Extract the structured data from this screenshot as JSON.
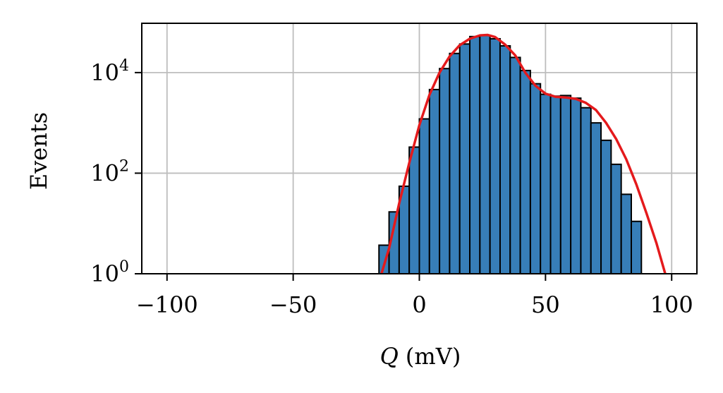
{
  "chart_data": {
    "type": "bar",
    "title": "",
    "xlabel": "(mV)",
    "xlabel_symbol": "Q",
    "ylabel": "Events",
    "xlim": [
      -110,
      110
    ],
    "yscale": "log",
    "ylim_exponents": [
      0,
      5
    ],
    "grid": true,
    "x_ticks": [
      {
        "value": -100,
        "label": "−100"
      },
      {
        "value": -50,
        "label": "−50"
      },
      {
        "value": 0,
        "label": "0"
      },
      {
        "value": 50,
        "label": "50"
      },
      {
        "value": 100,
        "label": "100"
      }
    ],
    "y_ticks": [
      {
        "exp": 0,
        "base": "10",
        "sup": "0"
      },
      {
        "exp": 2,
        "base": "10",
        "sup": "2"
      },
      {
        "exp": 4,
        "base": "10",
        "sup": "4"
      }
    ],
    "bin_width": 4,
    "histogram": {
      "bin_left_edges": [
        -16,
        -12,
        -8,
        -4,
        0,
        4,
        8,
        12,
        16,
        20,
        24,
        28,
        32,
        36,
        40,
        44,
        48,
        52,
        56,
        60,
        64,
        68,
        72,
        76,
        80,
        84
      ],
      "counts": [
        3.7,
        17,
        55,
        330,
        1200,
        4600,
        12000,
        24000,
        37000,
        52000,
        55000,
        47000,
        34000,
        20000,
        11000,
        6000,
        3700,
        3400,
        3500,
        3100,
        2000,
        1000,
        450,
        150,
        38,
        11
      ]
    },
    "series": [
      {
        "type": "line",
        "color": "#e41a1c",
        "x": [
          -15,
          -12,
          -8,
          -4,
          0,
          4,
          8,
          12,
          16,
          20,
          24,
          27,
          30,
          34,
          38,
          42,
          46,
          50,
          54,
          58,
          62,
          66,
          70,
          74,
          78,
          82,
          86,
          90,
          94,
          98
        ],
        "y": [
          1,
          3.2,
          25,
          160,
          900,
          3600,
          10000,
          21000,
          35000,
          47000,
          55000,
          56000,
          51000,
          36000,
          22000,
          10000,
          5500,
          3800,
          3300,
          3200,
          3000,
          2500,
          1800,
          1000,
          480,
          190,
          60,
          16,
          4,
          0.8
        ]
      }
    ],
    "bar_color": "#377eb8",
    "bar_edge_color": "#000000"
  }
}
